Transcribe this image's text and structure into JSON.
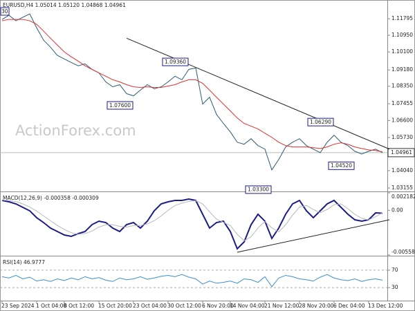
{
  "chart_data": [
    {
      "type": "line",
      "title": "EURUSD,H4  1.05014 1.05120 1.04868 1.04961",
      "watermark": "ActionForex.com",
      "corner_label": "30",
      "ylim": [
        1.0298,
        1.1275
      ],
      "yticks": [
        1.11795,
        {
          "value": 1.1095,
          "label": "1.10950"
        },
        {
          "value": 1.101,
          "label": "1.10100"
        },
        {
          "value": 1.0918,
          "label": "1.09180"
        },
        {
          "value": 1.0835,
          "label": "1.08350"
        },
        1.07455,
        {
          "value": 1.066,
          "label": "1.06600"
        },
        {
          "value": 1.0573,
          "label": "1.05730"
        },
        {
          "value": 1.0404,
          "label": "1.04040"
        },
        1.03155
      ],
      "current_price": 1.04961,
      "series": [
        {
          "color": "#2c5d75",
          "values": [
            1.1176,
            1.1197,
            1.1169,
            1.1187,
            1.1204,
            1.1133,
            1.107,
            1.1034,
            1.0992,
            1.0974,
            1.0956,
            1.0939,
            1.0949,
            1.0921,
            1.0903,
            1.0857,
            1.0832,
            1.0843,
            1.0797,
            1.0786,
            1.0815,
            1.0843,
            1.0822,
            1.0832,
            1.0857,
            1.0886,
            1.0868,
            1.0921,
            1.0928,
            1.0744,
            1.0779,
            1.0691,
            1.0645,
            1.0602,
            1.0549,
            1.0539,
            1.0567,
            1.0532,
            1.0514,
            1.0408,
            1.0461,
            1.0525,
            1.0549,
            1.0567,
            1.0532,
            1.0514,
            1.0496,
            1.0549,
            1.0585,
            1.0549,
            1.0532,
            1.0503,
            1.0489,
            1.0503,
            1.0514,
            1.0496
          ]
        },
        {
          "color": "#e03030",
          "values": [
            1.1169,
            1.1176,
            1.1176,
            1.1176,
            1.1169,
            1.1151,
            1.1116,
            1.108,
            1.1045,
            1.101,
            1.0985,
            1.0963,
            1.0939,
            1.0921,
            1.0903,
            1.0886,
            1.0868,
            1.0857,
            1.0843,
            1.0832,
            1.0829,
            1.0832,
            1.0829,
            1.0829,
            1.0836,
            1.0843,
            1.0857,
            1.0868,
            1.0868,
            1.085,
            1.0815,
            1.0779,
            1.0744,
            1.0709,
            1.0673,
            1.0645,
            1.0631,
            1.0617,
            1.0595,
            1.0574,
            1.0549,
            1.0532,
            1.0525,
            1.0525,
            1.0525,
            1.0521,
            1.0517,
            1.0525,
            1.0539,
            1.0546,
            1.0539,
            1.0525,
            1.0517,
            1.051,
            1.0507,
            1.05
          ]
        }
      ],
      "trendlines": [
        {
          "x": [
            18,
            56
          ],
          "y": [
            1.108,
            1.0514
          ]
        }
      ],
      "annotations": [
        {
          "x": 27,
          "value": 1.0936,
          "label": "1.09360",
          "position": "above"
        },
        {
          "x": 19,
          "value": 1.076,
          "label": "1.07600",
          "position": "below"
        },
        {
          "x": 48,
          "value": 1.0629,
          "label": "1.06290",
          "position": "above"
        },
        {
          "x": 51,
          "value": 1.0452,
          "label": "1.04520",
          "position": "below"
        },
        {
          "x": 39,
          "value": 1.033,
          "label": "1.03300",
          "position": "below"
        }
      ]
    },
    {
      "type": "line",
      "title": "MACD(12,26,9) -0.000358 -0.000309",
      "ylim": [
        -0.005584,
        0.002182
      ],
      "yticks": [
        0.002182,
        {
          "value": 0,
          "label": "0.00"
        },
        -0.005584
      ],
      "series": [
        {
          "color": "#1b1b8a",
          "values": [
            0.001233,
            0.00106,
            0.000801,
            0.00037,
            -6.2e-05,
            -0.000925,
            -0.001529,
            -0.002219,
            -0.002651,
            -0.003082,
            -0.003255,
            -0.00291,
            -0.002651,
            -0.001788,
            -0.001356,
            -0.001529,
            -0.002219,
            -0.002651,
            -0.001788,
            -0.001529,
            -0.002219,
            -0.001356,
            -6.2e-05,
            0.000801,
            0.00106,
            0.001233,
            0.001233,
            0.001405,
            0.001233,
            -0.000493,
            -0.002219,
            -0.001529,
            -0.001356,
            -0.002651,
            -0.004808,
            -0.003945,
            -0.001788,
            -0.000493,
            -0.001356,
            -0.003514,
            -0.002219,
            -0.000493,
            0.000801,
            0.001233,
            -6.2e-05,
            -0.000925,
            -6.2e-05,
            0.000801,
            0.001233,
            0.00037,
            -0.000493,
            -0.001184,
            -0.001356,
            -0.001184,
            -0.000321,
            -0.000358
          ]
        },
        {
          "color": "#b8b8b8",
          "values": [
            0.0013,
            0.0012,
            0.0011,
            0.0008,
            0.0004,
            -0.0001,
            -0.0007,
            -0.0013,
            -0.0019,
            -0.0024,
            -0.0028,
            -0.003,
            -0.0029,
            -0.0026,
            -0.0021,
            -0.0018,
            -0.0018,
            -0.002,
            -0.0021,
            -0.0019,
            -0.0019,
            -0.0017,
            -0.0013,
            -0.0007,
            0.0,
            0.0006,
            0.0009,
            0.0011,
            0.0012,
            0.0008,
            -0.0002,
            -0.0011,
            -0.0015,
            -0.0019,
            -0.003,
            -0.0038,
            -0.0033,
            -0.0022,
            -0.0014,
            -0.0022,
            -0.0027,
            -0.0018,
            -0.0006,
            0.0004,
            0.0006,
            0.0001,
            -0.0003,
            0.0001,
            0.0007,
            0.0008,
            0.0002,
            -0.0005,
            -0.001,
            -0.0012,
            -0.0008,
            -0.000309
          ]
        }
      ],
      "trendlines": [
        {
          "x": [
            34,
            56
          ],
          "y": [
            -0.00524,
            -0.00118
          ]
        }
      ]
    },
    {
      "type": "line",
      "title": "RSI(14) 46.9777",
      "ylim": [
        0,
        100
      ],
      "yticks": [
        70,
        30
      ],
      "grid": true,
      "categories": [
        "23 Sep 2024",
        null,
        null,
        null,
        null,
        "1 Oct 04:00",
        null,
        null,
        null,
        "8 Oct 12:00",
        null,
        null,
        null,
        null,
        "15 Oct 20:00",
        null,
        null,
        null,
        null,
        "23 Oct 04:00",
        null,
        null,
        null,
        null,
        "30 Oct 12:00",
        null,
        null,
        null,
        null,
        "6 Nov 20:00",
        null,
        null,
        null,
        "14 Nov 04:00",
        null,
        null,
        null,
        null,
        "21 Nov 12:00",
        null,
        null,
        null,
        null,
        "28 Nov 20:00",
        null,
        null,
        null,
        null,
        "6 Dec 04:00",
        null,
        null,
        null,
        null,
        "13 Dec 12:00",
        null,
        null
      ],
      "series": [
        {
          "color": "#3a8fd0",
          "values": [
            55,
            52,
            58,
            50,
            54,
            45,
            48,
            44,
            50,
            46,
            52,
            48,
            55,
            50,
            53,
            47,
            44,
            52,
            48,
            50,
            55,
            49,
            52,
            56,
            58,
            55,
            60,
            54,
            50,
            38,
            45,
            40,
            42,
            45,
            40,
            50,
            48,
            42,
            55,
            32,
            52,
            58,
            55,
            50,
            48,
            45,
            54,
            60,
            52,
            48,
            46,
            50,
            44,
            48,
            50,
            46.9777
          ]
        }
      ]
    }
  ]
}
